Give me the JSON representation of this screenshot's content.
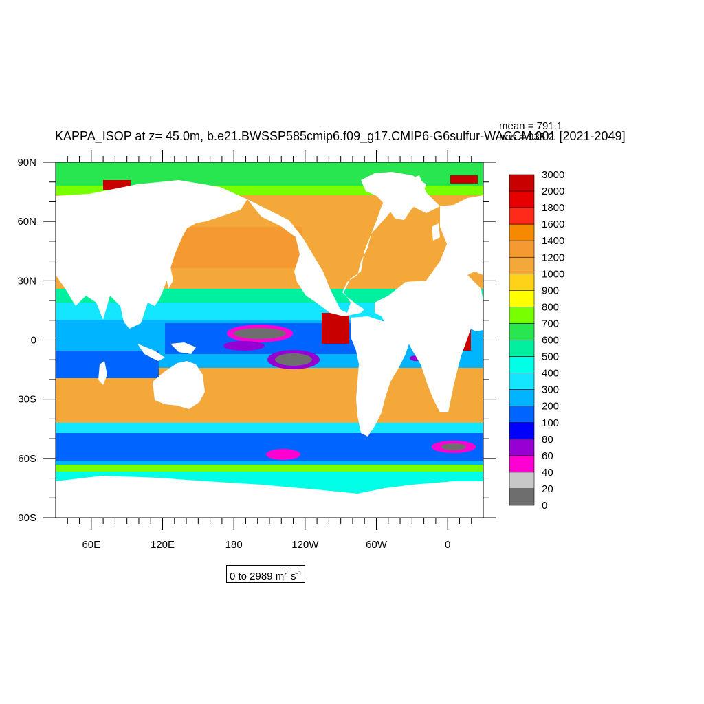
{
  "title": "KAPPA_ISOP at z=  45.0m, b.e21.BWSSP585cmip6.f09_g17.CMIP6-G6sulfur-WACCM.001 [2021-2049]",
  "stats": {
    "mean": "mean = 791.1",
    "rms": "rms = 935.2"
  },
  "range": {
    "text": "0 to 2989 m",
    "unit_exp1": "2",
    "unit_mid": " s",
    "unit_exp2": "-1"
  },
  "map": {
    "lat_labels": [
      "90N",
      "60N",
      "30N",
      "0",
      "30S",
      "60S",
      "90S"
    ],
    "lon_labels": [
      "60E",
      "120E",
      "180",
      "120W",
      "60W",
      "0"
    ],
    "lat_range": [
      -90,
      90
    ],
    "lon_range": [
      30,
      390
    ]
  },
  "colorbar": {
    "labels": [
      "3000",
      "2000",
      "1800",
      "1600",
      "1400",
      "1200",
      "1000",
      "900",
      "800",
      "700",
      "600",
      "500",
      "400",
      "300",
      "200",
      "100",
      "80",
      "60",
      "40",
      "20",
      "0"
    ],
    "colors": [
      "#c80000",
      "#e60000",
      "#ff2a1a",
      "#f58a00",
      "#f59a30",
      "#f5a83a",
      "#ffd21a",
      "#ffff00",
      "#78ff00",
      "#28e650",
      "#00f0a0",
      "#00ffe6",
      "#14e6ff",
      "#00b4ff",
      "#0064ff",
      "#0000ff",
      "#9600d2",
      "#ff00d2",
      "#c8c8c8",
      "#6e6e6e"
    ]
  }
}
